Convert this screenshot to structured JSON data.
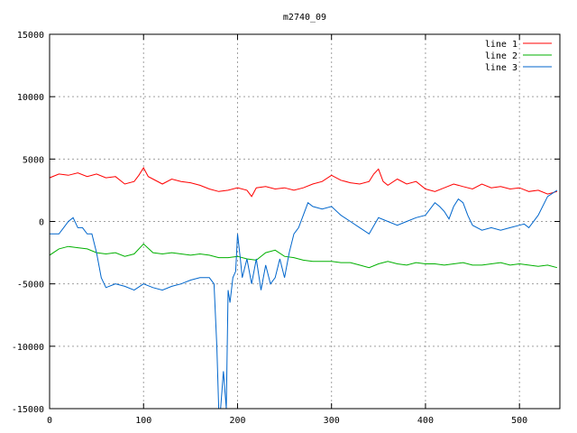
{
  "chart_data": {
    "type": "line",
    "title": "m2740_09",
    "xlabel": "",
    "ylabel": "",
    "xlim": [
      0,
      543
    ],
    "ylim": [
      -15000,
      15000
    ],
    "xticks": [
      0,
      100,
      200,
      300,
      400,
      500
    ],
    "yticks": [
      -15000,
      -10000,
      -5000,
      0,
      5000,
      10000,
      15000
    ],
    "grid": true,
    "legend_position": "top-right",
    "series": [
      {
        "name": "line 1",
        "color": "#ff0000",
        "x": [
          0,
          10,
          20,
          30,
          40,
          50,
          60,
          70,
          80,
          90,
          95,
          100,
          105,
          110,
          120,
          130,
          140,
          150,
          160,
          170,
          180,
          190,
          200,
          210,
          215,
          220,
          230,
          240,
          250,
          260,
          270,
          280,
          290,
          300,
          310,
          320,
          330,
          340,
          345,
          350,
          355,
          360,
          370,
          380,
          390,
          400,
          410,
          420,
          430,
          440,
          450,
          460,
          470,
          480,
          490,
          500,
          510,
          520,
          530,
          540
        ],
        "y": [
          3500,
          3800,
          3700,
          3900,
          3600,
          3800,
          3500,
          3600,
          3000,
          3200,
          3700,
          4300,
          3600,
          3400,
          3000,
          3400,
          3200,
          3100,
          2900,
          2600,
          2400,
          2500,
          2700,
          2500,
          2000,
          2700,
          2800,
          2600,
          2700,
          2500,
          2700,
          3000,
          3200,
          3700,
          3300,
          3100,
          3000,
          3200,
          3800,
          4200,
          3200,
          2900,
          3400,
          3000,
          3200,
          2600,
          2400,
          2700,
          3000,
          2800,
          2600,
          3000,
          2700,
          2800,
          2600,
          2700,
          2400,
          2500,
          2200,
          2400
        ]
      },
      {
        "name": "line 2",
        "color": "#00b000",
        "x": [
          0,
          10,
          20,
          30,
          40,
          50,
          60,
          70,
          80,
          90,
          100,
          110,
          120,
          130,
          140,
          150,
          160,
          170,
          180,
          190,
          200,
          210,
          220,
          230,
          240,
          250,
          260,
          270,
          280,
          290,
          300,
          310,
          320,
          330,
          340,
          350,
          360,
          370,
          380,
          390,
          400,
          410,
          420,
          430,
          440,
          450,
          460,
          470,
          480,
          490,
          500,
          510,
          520,
          530,
          540
        ],
        "y": [
          -2700,
          -2200,
          -2000,
          -2100,
          -2200,
          -2500,
          -2600,
          -2500,
          -2800,
          -2600,
          -1800,
          -2500,
          -2600,
          -2500,
          -2600,
          -2700,
          -2600,
          -2700,
          -2900,
          -2900,
          -2800,
          -3000,
          -3100,
          -2500,
          -2300,
          -2800,
          -2900,
          -3100,
          -3200,
          -3200,
          -3200,
          -3300,
          -3300,
          -3500,
          -3700,
          -3400,
          -3200,
          -3400,
          -3500,
          -3300,
          -3400,
          -3400,
          -3500,
          -3400,
          -3300,
          -3500,
          -3500,
          -3400,
          -3300,
          -3500,
          -3400,
          -3500,
          -3600,
          -3500,
          -3700
        ]
      },
      {
        "name": "line 3",
        "color": "#0066cc",
        "x": [
          0,
          10,
          15,
          20,
          25,
          30,
          35,
          40,
          45,
          50,
          55,
          60,
          70,
          80,
          90,
          100,
          110,
          120,
          130,
          140,
          150,
          160,
          170,
          175,
          178,
          180,
          182,
          185,
          188,
          190,
          192,
          195,
          198,
          200,
          203,
          205,
          210,
          215,
          220,
          225,
          230,
          235,
          240,
          245,
          250,
          255,
          260,
          265,
          270,
          275,
          280,
          290,
          300,
          310,
          320,
          330,
          340,
          350,
          360,
          370,
          380,
          390,
          400,
          410,
          415,
          420,
          425,
          430,
          435,
          440,
          445,
          450,
          460,
          470,
          480,
          490,
          500,
          505,
          510,
          520,
          530,
          540
        ],
        "y": [
          -1000,
          -1000,
          -500,
          0,
          300,
          -500,
          -500,
          -1000,
          -1000,
          -2500,
          -4500,
          -5300,
          -5000,
          -5200,
          -5500,
          -5000,
          -5300,
          -5500,
          -5200,
          -5000,
          -4700,
          -4500,
          -4500,
          -5000,
          -10000,
          -15000,
          -15000,
          -12000,
          -15000,
          -5500,
          -6500,
          -4500,
          -4000,
          -1000,
          -3000,
          -4500,
          -3000,
          -5000,
          -3000,
          -5500,
          -3500,
          -5000,
          -4500,
          -3000,
          -4500,
          -2500,
          -1000,
          -500,
          500,
          1500,
          1200,
          1000,
          1200,
          500,
          0,
          -500,
          -1000,
          300,
          0,
          -300,
          0,
          300,
          500,
          1500,
          1200,
          800,
          200,
          1200,
          1800,
          1500,
          500,
          -300,
          -700,
          -500,
          -700,
          -500,
          -300,
          -200,
          -500,
          500,
          2000,
          2500
        ]
      }
    ]
  }
}
